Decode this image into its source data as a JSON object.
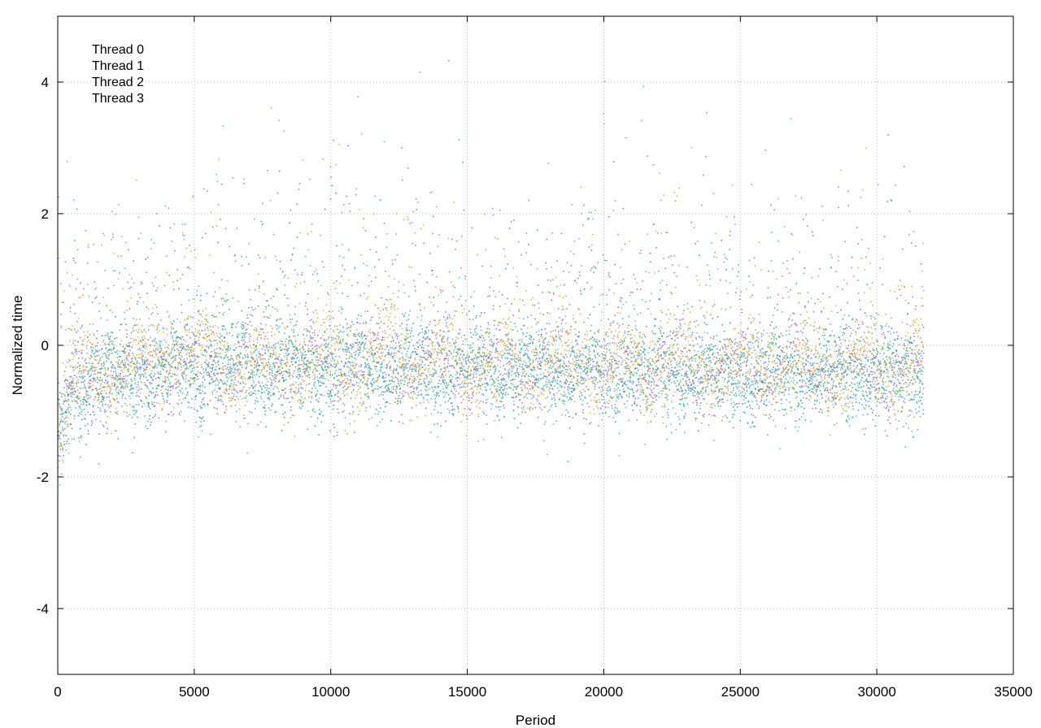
{
  "chart_data": {
    "type": "scatter",
    "title": "",
    "xlabel": "Period",
    "ylabel": "Normalized time",
    "xlim": [
      0,
      35000
    ],
    "ylim": [
      -5,
      5
    ],
    "x_ticks": [
      0,
      5000,
      10000,
      15000,
      20000,
      25000,
      30000,
      35000
    ],
    "y_ticks": [
      -4,
      -2,
      0,
      2,
      4
    ],
    "x_tick_labels": [
      "0",
      "5000",
      "10000",
      "15000",
      "20000",
      "25000",
      "30000",
      "35000"
    ],
    "y_tick_labels": [
      "-4",
      "-2",
      "0",
      "2",
      "4"
    ],
    "grid": true,
    "legend_position": "top-left",
    "n_periods": 31700,
    "series": [
      {
        "name": "Thread 0",
        "color": "#9a5fe0",
        "center": [
          [
            0,
            -1.5
          ],
          [
            500,
            -0.6
          ],
          [
            2000,
            -0.45
          ],
          [
            5000,
            -0.3
          ],
          [
            10000,
            -0.3
          ],
          [
            15000,
            -0.35
          ],
          [
            20000,
            -0.35
          ],
          [
            25000,
            -0.4
          ],
          [
            31700,
            -0.4
          ]
        ],
        "spread": 0.28,
        "outlier_rate": 0.2,
        "outlier_max": 3.0
      },
      {
        "name": "Thread 1",
        "color": "#1f9e6e",
        "center": [
          [
            0,
            -1.6
          ],
          [
            500,
            -0.65
          ],
          [
            2000,
            -0.5
          ],
          [
            5000,
            -0.35
          ],
          [
            10000,
            -0.35
          ],
          [
            15000,
            -0.4
          ],
          [
            20000,
            -0.4
          ],
          [
            25000,
            -0.45
          ],
          [
            31700,
            -0.45
          ]
        ],
        "spread": 0.28,
        "outlier_rate": 0.15,
        "outlier_max": 2.8
      },
      {
        "name": "Thread 2",
        "color": "#3aaed0",
        "center": [
          [
            0,
            -1.5
          ],
          [
            500,
            -0.6
          ],
          [
            2000,
            -0.5
          ],
          [
            5000,
            -0.4
          ],
          [
            10000,
            -0.35
          ],
          [
            15000,
            -0.4
          ],
          [
            20000,
            -0.45
          ],
          [
            25000,
            -0.5
          ],
          [
            31700,
            -0.5
          ]
        ],
        "spread": 0.3,
        "outlier_rate": 0.2,
        "outlier_max": 3.2
      },
      {
        "name": "Thread 3",
        "color": "#e0a020",
        "center": [
          [
            0,
            -1.3
          ],
          [
            500,
            -0.55
          ],
          [
            2000,
            -0.4
          ],
          [
            4500,
            0.0
          ],
          [
            6000,
            -0.3
          ],
          [
            10000,
            -0.25
          ],
          [
            15000,
            -0.3
          ],
          [
            20000,
            -0.3
          ],
          [
            25000,
            -0.3
          ],
          [
            31700,
            -0.35
          ]
        ],
        "spread": 0.3,
        "outlier_rate": 0.18,
        "outlier_max": 2.6
      }
    ]
  }
}
